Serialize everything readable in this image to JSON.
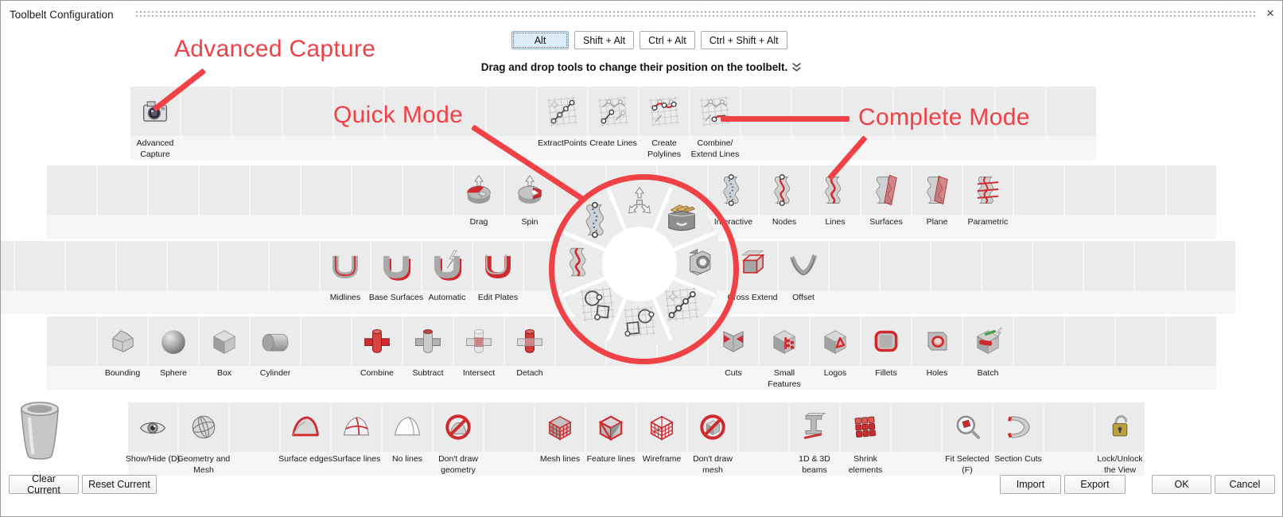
{
  "window": {
    "title": "Toolbelt Configuration",
    "close_glyph": "×"
  },
  "tabs": [
    {
      "label": "Alt",
      "selected": true
    },
    {
      "label": "Shift + Alt",
      "selected": false
    },
    {
      "label": "Ctrl + Alt",
      "selected": false
    },
    {
      "label": "Ctrl + Shift + Alt",
      "selected": false
    }
  ],
  "instruction": {
    "text": "Drag and drop tools to change their position on the toolbelt."
  },
  "annotations": [
    {
      "id": "advanced-capture",
      "text": "Advanced Capture"
    },
    {
      "id": "quick-mode",
      "text": "Quick Mode"
    },
    {
      "id": "complete-mode",
      "text": "Complete Mode"
    }
  ],
  "colors": {
    "annotation_red": "#ef4146",
    "tool_red": "#cf2b2f",
    "cell_bg": "#ebebeb",
    "tab_selected_bg": "#dcecf8"
  },
  "rows": [
    {
      "name": "toolbelt-row-1",
      "count": 19,
      "tools": [
        {
          "index": 0,
          "name": "advanced-capture",
          "label": "Advanced Capture",
          "icon": "camera"
        },
        {
          "index": 8,
          "name": "extract-points",
          "label": "ExtractPoints",
          "icon": "grid-extract"
        },
        {
          "index": 9,
          "name": "create-lines",
          "label": "Create Lines",
          "icon": "grid-lines"
        },
        {
          "index": 10,
          "name": "create-polylines",
          "label": "Create Polylines",
          "icon": "grid-poly"
        },
        {
          "index": 11,
          "name": "combine-extend-lines",
          "label": "Combine/ Extend Lines",
          "icon": "grid-combine"
        }
      ]
    },
    {
      "name": "toolbelt-row-2",
      "count": 23,
      "tools": [
        {
          "index": 8,
          "name": "drag",
          "label": "Drag",
          "icon": "pie-drag"
        },
        {
          "index": 9,
          "name": "spin",
          "label": "Spin",
          "icon": "pie-spin"
        },
        {
          "index": 13,
          "name": "interactive",
          "label": "Interactive",
          "icon": "wave-interactive"
        },
        {
          "index": 14,
          "name": "nodes",
          "label": "Nodes",
          "icon": "wave-nodes"
        },
        {
          "index": 15,
          "name": "lines",
          "label": "Lines",
          "icon": "wave-lines"
        },
        {
          "index": 16,
          "name": "surfaces",
          "label": "Surfaces",
          "icon": "wave-surfaces"
        },
        {
          "index": 17,
          "name": "plane",
          "label": "Plane",
          "icon": "wave-plane"
        },
        {
          "index": 18,
          "name": "parametric",
          "label": "Parametric",
          "icon": "wave-parametric"
        }
      ]
    },
    {
      "name": "toolbelt-row-3",
      "count": 25,
      "tools": [
        {
          "index": 7,
          "name": "midlines",
          "label": "Midlines",
          "icon": "channel-midlines"
        },
        {
          "index": 8,
          "name": "base-surfaces",
          "label": "Base Surfaces",
          "icon": "channel-base"
        },
        {
          "index": 9,
          "name": "automatic",
          "label": "Automatic",
          "icon": "channel-automatic"
        },
        {
          "index": 10,
          "name": "edit-plates",
          "label": "Edit Plates",
          "icon": "channel-edit"
        },
        {
          "index": 15,
          "name": "cross-extend",
          "label": "Cross Extend",
          "icon": "cross-extend"
        },
        {
          "index": 16,
          "name": "offset",
          "label": "Offset",
          "icon": "offset"
        }
      ]
    },
    {
      "name": "toolbelt-row-4",
      "count": 23,
      "tools": [
        {
          "index": 1,
          "name": "bounding",
          "label": "Bounding",
          "icon": "bounding"
        },
        {
          "index": 2,
          "name": "sphere",
          "label": "Sphere",
          "icon": "sphere"
        },
        {
          "index": 3,
          "name": "box",
          "label": "Box",
          "icon": "box"
        },
        {
          "index": 4,
          "name": "cylinder",
          "label": "Cylinder",
          "icon": "cylinder"
        },
        {
          "index": 6,
          "name": "combine",
          "label": "Combine",
          "icon": "bool-combine"
        },
        {
          "index": 7,
          "name": "subtract",
          "label": "Subtract",
          "icon": "bool-subtract"
        },
        {
          "index": 8,
          "name": "intersect",
          "label": "Intersect",
          "icon": "bool-intersect"
        },
        {
          "index": 9,
          "name": "detach",
          "label": "Detach",
          "icon": "bool-detach"
        },
        {
          "index": 13,
          "name": "cuts",
          "label": "Cuts",
          "icon": "cuts"
        },
        {
          "index": 14,
          "name": "small-features",
          "label": "Small Features",
          "icon": "small-features"
        },
        {
          "index": 15,
          "name": "logos",
          "label": "Logos",
          "icon": "logos"
        },
        {
          "index": 16,
          "name": "fillets",
          "label": "Fillets",
          "icon": "fillets"
        },
        {
          "index": 17,
          "name": "holes",
          "label": "Holes",
          "icon": "holes"
        },
        {
          "index": 18,
          "name": "batch",
          "label": "Batch",
          "icon": "batch"
        }
      ]
    },
    {
      "name": "toolbelt-row-5",
      "count": 20,
      "tools": [
        {
          "index": 0,
          "name": "show-hide",
          "label": "Show/Hide (D)",
          "icon": "eye"
        },
        {
          "index": 1,
          "name": "geometry-and-mesh",
          "label": "Geometry and Mesh",
          "icon": "globe"
        },
        {
          "index": 3,
          "name": "surface-edges",
          "label": "Surface edges",
          "icon": "dome-edges"
        },
        {
          "index": 4,
          "name": "surface-lines",
          "label": "Surface lines",
          "icon": "dome-lines"
        },
        {
          "index": 5,
          "name": "no-lines",
          "label": "No lines",
          "icon": "dome-none"
        },
        {
          "index": 6,
          "name": "dont-draw-geometry",
          "label": "Don't draw geometry",
          "icon": "nosign-geometry"
        },
        {
          "index": 8,
          "name": "mesh-lines",
          "label": "Mesh lines",
          "icon": "mesh-lines"
        },
        {
          "index": 9,
          "name": "feature-lines",
          "label": "Feature lines",
          "icon": "feature-lines"
        },
        {
          "index": 10,
          "name": "wireframe",
          "label": "Wireframe",
          "icon": "wireframe"
        },
        {
          "index": 11,
          "name": "dont-draw-mesh",
          "label": "Don't draw mesh",
          "icon": "nosign-mesh"
        },
        {
          "index": 13,
          "name": "beams-1d-3d",
          "label": "1D & 3D beams",
          "icon": "ibeam"
        },
        {
          "index": 14,
          "name": "shrink-elements",
          "label": "Shrink elements",
          "icon": "rubik"
        },
        {
          "index": 16,
          "name": "fit-selected",
          "label": "Fit Selected (F)",
          "icon": "magnify"
        },
        {
          "index": 17,
          "name": "section-cuts",
          "label": "Section Cuts",
          "icon": "section"
        },
        {
          "index": 19,
          "name": "lock-unlock-view",
          "label": "Lock/Unlock the View",
          "icon": "lock"
        }
      ]
    }
  ],
  "radial_menu": {
    "sectors": [
      {
        "icon": "move-arrows"
      },
      {
        "icon": "drawer"
      },
      {
        "icon": "nut"
      },
      {
        "icon": "grid-extract"
      },
      {
        "icon": "grid-sketch"
      },
      {
        "icon": "grid-sketch2"
      },
      {
        "icon": "wave-lines"
      },
      {
        "icon": "wave-interactive"
      }
    ]
  },
  "footer": {
    "left_buttons": [
      {
        "label": "Clear Current"
      },
      {
        "label": "Reset Current"
      }
    ],
    "right_buttons": [
      {
        "label": "Import"
      },
      {
        "label": "Export"
      },
      {
        "label": "OK"
      },
      {
        "label": "Cancel"
      }
    ]
  }
}
